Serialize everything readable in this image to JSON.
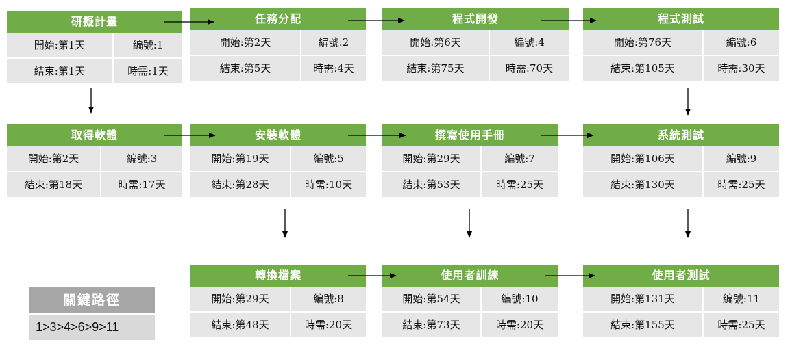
{
  "tasks": {
    "t1": {
      "name": "研擬計畫",
      "start": "開始:第1天",
      "id": "編號:1",
      "end": "結束:第1天",
      "duration": "時需:1天"
    },
    "t2": {
      "name": "任務分配",
      "start": "開始:第2天",
      "id": "編號:2",
      "end": "結束:第5天",
      "duration": "時需:4天"
    },
    "t3": {
      "name": "程式開發",
      "start": "開始:第6天",
      "id": "編號:4",
      "end": "結束:第75天",
      "duration": "時需:70天"
    },
    "t4": {
      "name": "程式測試",
      "start": "開始:第76天",
      "id": "編號:6",
      "end": "結束:第105天",
      "duration": "時需:30天"
    },
    "t5": {
      "name": "取得軟體",
      "start": "開始:第2天",
      "id": "編號:3",
      "end": "結束:第18天",
      "duration": "時需:17天"
    },
    "t6": {
      "name": "安裝軟體",
      "start": "開始:第19天",
      "id": "編號:5",
      "end": "結束:第28天",
      "duration": "時需:10天"
    },
    "t7": {
      "name": "撰寫使用手冊",
      "start": "開始:第29天",
      "id": "編號:7",
      "end": "結束:第53天",
      "duration": "時需:25天"
    },
    "t8": {
      "name": "系統測試",
      "start": "開始:第106天",
      "id": "編號:9",
      "end": "結束:第130天",
      "duration": "時需:25天"
    },
    "t9": {
      "name": "轉換檔案",
      "start": "開始:第29天",
      "id": "編號:8",
      "end": "結束:第48天",
      "duration": "時需:20天"
    },
    "t10": {
      "name": "使用者訓練",
      "start": "開始:第54天",
      "id": "編號:10",
      "end": "結束:第73天",
      "duration": "時需:20天"
    },
    "t11": {
      "name": "使用者測試",
      "start": "開始:第131天",
      "id": "編號:11",
      "end": "結束:第155天",
      "duration": "時需:25天"
    }
  },
  "legend": {
    "title": "關鍵路徑",
    "value": "1>3>4>6>9>11"
  },
  "colors": {
    "header": "#70ad47",
    "cell": "#e7e6e6",
    "legend_title": "#a6a6a6",
    "legend_value": "#d9d9d9"
  }
}
